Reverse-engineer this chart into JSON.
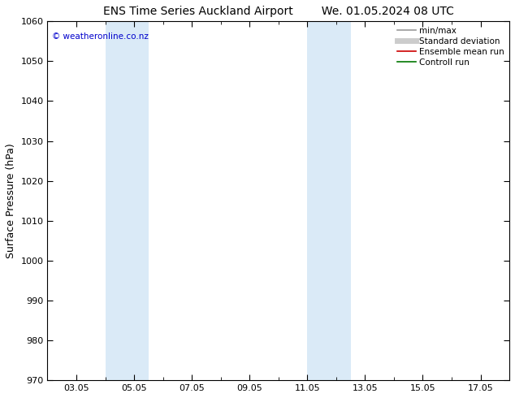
{
  "title_left": "ENS Time Series Auckland Airport",
  "title_right": "We. 01.05.2024 08 UTC",
  "ylabel": "Surface Pressure (hPa)",
  "ylim": [
    970,
    1060
  ],
  "yticks": [
    970,
    980,
    990,
    1000,
    1010,
    1020,
    1030,
    1040,
    1050,
    1060
  ],
  "xlim": [
    2,
    18
  ],
  "xtick_labels": [
    "03.05",
    "05.05",
    "07.05",
    "09.05",
    "11.05",
    "13.05",
    "15.05",
    "17.05"
  ],
  "xtick_positions": [
    3,
    5,
    7,
    9,
    11,
    13,
    15,
    17
  ],
  "shade_bands": [
    {
      "start": 4.0,
      "end": 5.5
    },
    {
      "start": 11.0,
      "end": 12.5
    }
  ],
  "shade_color": "#daeaf7",
  "watermark_text": "© weatheronline.co.nz",
  "watermark_color": "#0000cc",
  "legend_entries": [
    {
      "label": "min/max",
      "color": "#999999",
      "lw": 1.2
    },
    {
      "label": "Standard deviation",
      "color": "#cccccc",
      "lw": 5
    },
    {
      "label": "Ensemble mean run",
      "color": "#cc0000",
      "lw": 1.2
    },
    {
      "label": "Controll run",
      "color": "#007700",
      "lw": 1.2
    }
  ],
  "bg_color": "#ffffff",
  "title_fontsize": 10,
  "label_fontsize": 9,
  "tick_fontsize": 8,
  "watermark_fontsize": 7.5,
  "legend_fontsize": 7.5
}
